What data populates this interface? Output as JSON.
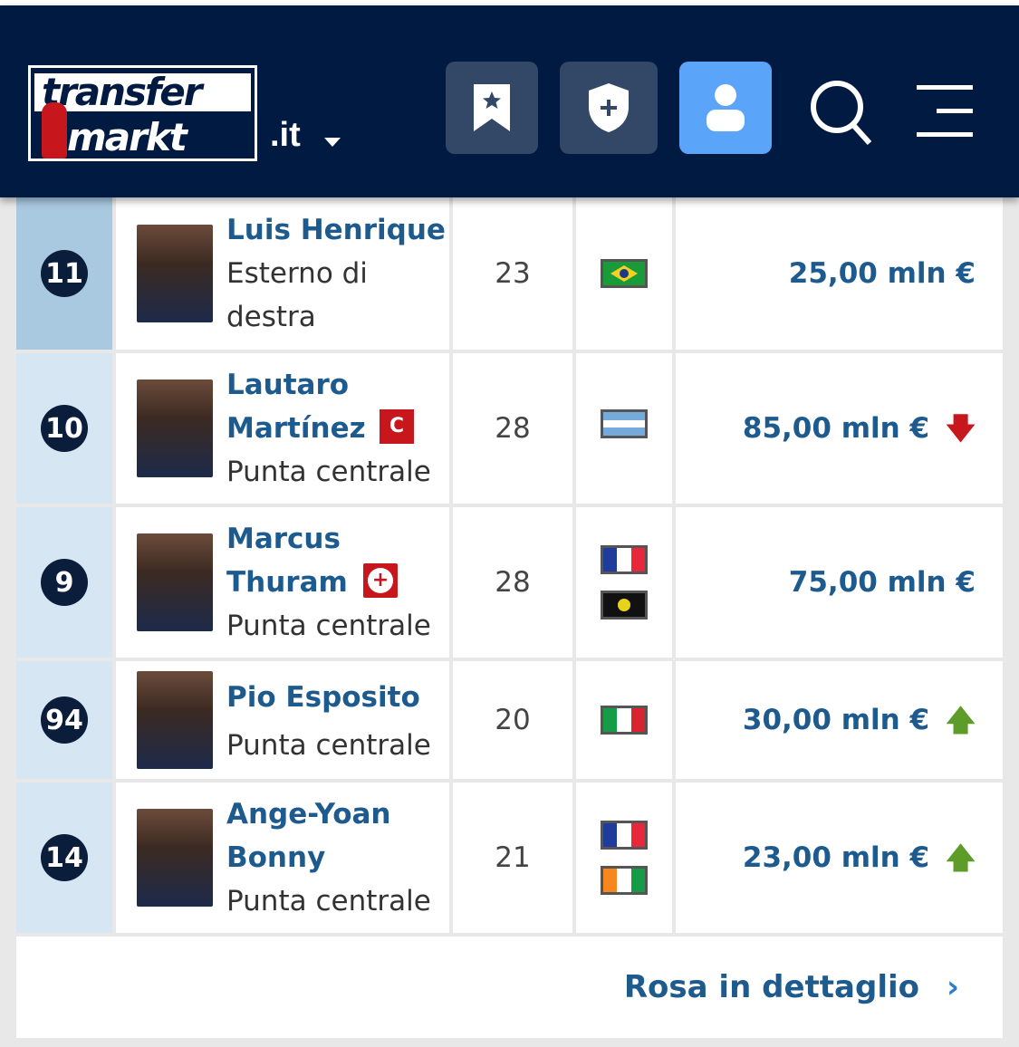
{
  "header": {
    "logo_text_top": "transfer",
    "logo_text_bottom": "markt",
    "tld": ".it",
    "buttons": [
      "bookmark-icon",
      "shield-plus-icon",
      "user-icon",
      "search-icon",
      "menu-icon"
    ],
    "colors": {
      "nav": "#001a42",
      "active": "#5aa4f9"
    }
  },
  "players": [
    {
      "number": "11",
      "name": "Luis Henrique",
      "badge": "",
      "position": "Esterno di destra",
      "age": "23",
      "flags": [
        "brazil"
      ],
      "value": "25,00 mln €",
      "trend": ""
    },
    {
      "number": "10",
      "name": "Lautaro Martínez",
      "badge": "C",
      "badge_meaning": "captain",
      "position": "Punta centrale",
      "age": "28",
      "flags": [
        "argentina"
      ],
      "value": "85,00 mln €",
      "trend": "down"
    },
    {
      "number": "9",
      "name": "Marcus Thuram",
      "badge": "+",
      "badge_meaning": "injury",
      "position": "Punta centrale",
      "age": "28",
      "flags": [
        "france",
        "guadeloupe"
      ],
      "value": "75,00 mln €",
      "trend": ""
    },
    {
      "number": "94",
      "name": "Pio Esposito",
      "badge": "",
      "position": "Punta centrale",
      "age": "20",
      "flags": [
        "italy"
      ],
      "value": "30,00 mln €",
      "trend": "up"
    },
    {
      "number": "14",
      "name": "Ange-Yoan Bonny",
      "badge": "",
      "position": "Punta centrale",
      "age": "21",
      "flags": [
        "france",
        "ivory-coast"
      ],
      "value": "23,00 mln €",
      "trend": "up"
    }
  ],
  "footer": {
    "link": "Rosa in dettaglio"
  }
}
